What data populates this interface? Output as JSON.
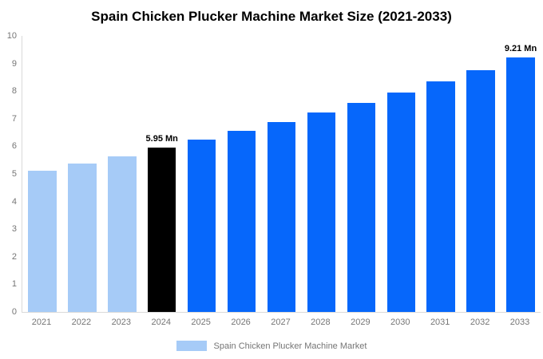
{
  "chart_data": {
    "type": "bar",
    "title": "Spain Chicken Plucker Machine Market Size (2021-2033)",
    "categories": [
      "2021",
      "2022",
      "2023",
      "2024",
      "2025",
      "2026",
      "2027",
      "2028",
      "2029",
      "2030",
      "2031",
      "2032",
      "2033"
    ],
    "values": [
      5.11,
      5.37,
      5.64,
      5.95,
      6.24,
      6.55,
      6.88,
      7.22,
      7.58,
      7.96,
      8.36,
      8.77,
      9.21
    ],
    "bar_segments": [
      "historical",
      "historical",
      "historical",
      "current",
      "forecast",
      "forecast",
      "forecast",
      "forecast",
      "forecast",
      "forecast",
      "forecast",
      "forecast",
      "forecast"
    ],
    "annotations": [
      {
        "category": "2024",
        "text": "5.95 Mn"
      },
      {
        "category": "2033",
        "text": "9.21 Mn"
      }
    ],
    "xlabel": "",
    "ylabel": "",
    "ylim": [
      0,
      10
    ],
    "y_ticks": [
      0,
      1,
      2,
      3,
      4,
      5,
      6,
      7,
      8,
      9,
      10
    ],
    "grid": false,
    "colors": {
      "historical": "#A6CBF7",
      "current": "#000000",
      "forecast": "#0667FB"
    },
    "axis_line_color": "#D9D9D9",
    "tick_label_color": "#757575",
    "title_color": "#000000",
    "legend": {
      "position": "bottom",
      "label": "Spain Chicken Plucker Machine Market",
      "swatch_color": "#A6CBF7"
    }
  }
}
